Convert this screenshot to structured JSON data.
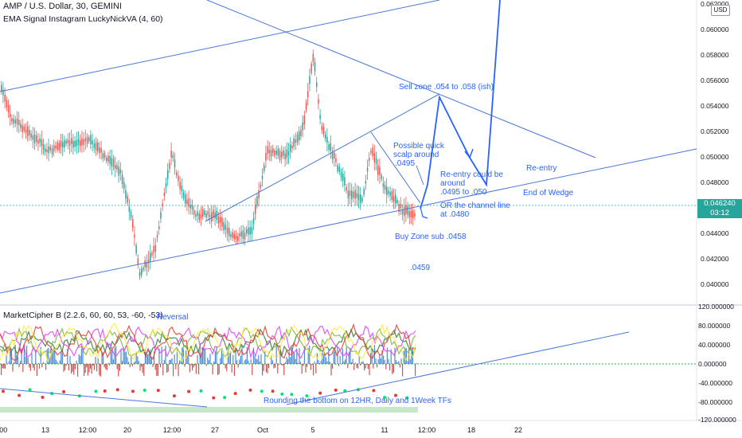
{
  "header": {
    "symbol_title": "AMP / U.S. Dollar, 30, GEMINI",
    "indicator_title": "EMA Signal Instagram LuckyNickVA (4, 60)",
    "currency": "USD"
  },
  "price_axis": {
    "labels": [
      "0.062000",
      "0.060000",
      "0.058000",
      "0.056000",
      "0.054000",
      "0.052000",
      "0.050000",
      "0.048000",
      "0.044000",
      "0.042000",
      "0.040000"
    ],
    "current_price": "0.046240",
    "countdown": "03:12"
  },
  "oscillator": {
    "title": "MarketCipher B (2.2.6, 60, 60, 53, -60, -53)",
    "axis_labels": [
      "120.000000",
      "80.000000",
      "40.000000",
      "0.000000",
      "-40.000000",
      "-80.000000",
      "-120.000000"
    ],
    "reversal_label": "Reversal",
    "bottom_note": "Rounding the bottom on 12HR, Daily and 1Week TFs"
  },
  "time_axis": {
    "labels": [
      ":00",
      "13",
      "12:00",
      "20",
      "12:00",
      "27",
      "Oct",
      "5",
      "11",
      "12:00",
      "18",
      "22"
    ]
  },
  "annotations": {
    "sell_zone": "Sell zone .054 to .058 (ish)",
    "quick_scalp": [
      "Possible quick",
      "scalp around",
      "0495"
    ],
    "reentry_note": [
      "Re-entry could be",
      "around",
      ".0495 to .050"
    ],
    "reentry": "Re-entry",
    "end_wedge": "End of Wedge",
    "channel": [
      "OR the channel line",
      "at .0480"
    ],
    "buy_zone": "Buy Zone sub .0458",
    "low_note": ".0459"
  },
  "colors": {
    "up_candle": "#26a69a",
    "down_candle": "#ef5350",
    "drawing": "#2962ff",
    "trendline": "#4a78d6",
    "price_line": "#26a69a"
  }
}
